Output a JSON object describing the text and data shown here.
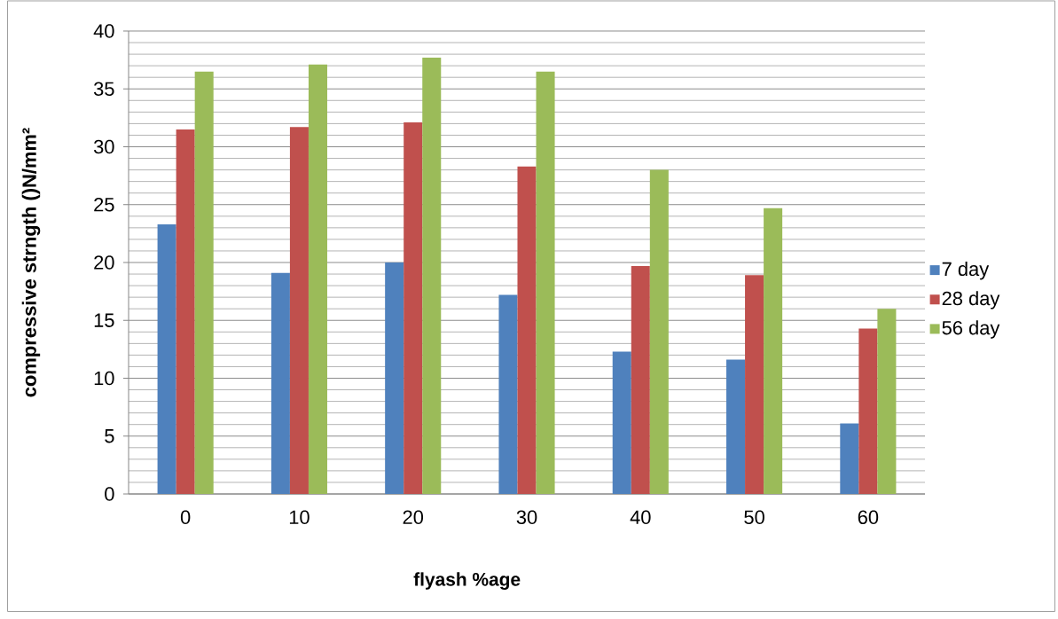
{
  "chart_data": {
    "type": "bar",
    "xlabel": "flyash %age",
    "ylabel": "compressive strngth ()N/mm²",
    "categories": [
      "0",
      "10",
      "20",
      "30",
      "40",
      "50",
      "60"
    ],
    "series": [
      {
        "name": "7 day",
        "color": "#4f81bd",
        "values": [
          23.3,
          19.1,
          20.0,
          17.2,
          12.3,
          11.6,
          6.1
        ]
      },
      {
        "name": "28 day",
        "color": "#c0504d",
        "values": [
          31.5,
          31.7,
          32.1,
          28.3,
          19.7,
          18.9,
          14.3
        ]
      },
      {
        "name": "56 day",
        "color": "#9bbb59",
        "values": [
          36.5,
          37.1,
          37.7,
          36.5,
          28.0,
          24.7,
          16.0
        ]
      }
    ],
    "ylim": [
      0,
      40
    ],
    "yticks": [
      0,
      5,
      10,
      15,
      20,
      25,
      30,
      35,
      40
    ],
    "grid": "y",
    "legend": "right"
  }
}
